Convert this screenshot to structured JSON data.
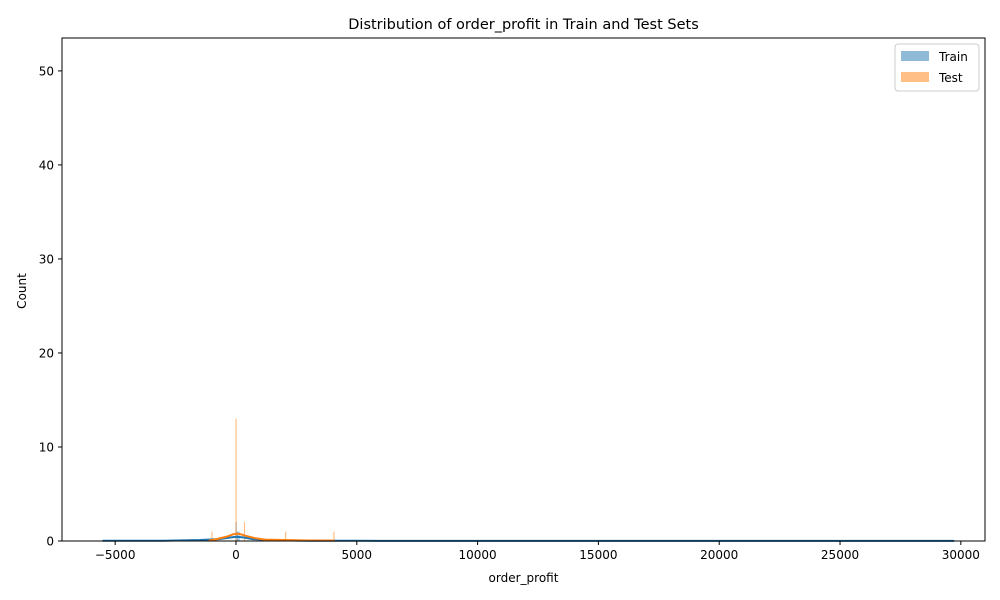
{
  "chart_data": {
    "type": "histogram",
    "title": "Distribution of order_profit in Train and Test Sets",
    "xlabel": "order_profit",
    "ylabel": "Count",
    "xlim": [
      -7200,
      31000
    ],
    "ylim": [
      0,
      53.5
    ],
    "x_ticks": [
      -5000,
      0,
      5000,
      10000,
      15000,
      20000,
      25000,
      30000
    ],
    "x_tick_labels": [
      "−5000",
      "0",
      "5000",
      "10000",
      "15000",
      "20000",
      "25000",
      "30000"
    ],
    "y_ticks": [
      0,
      10,
      20,
      30,
      40,
      50
    ],
    "y_tick_labels": [
      "0",
      "10",
      "20",
      "30",
      "40",
      "50"
    ],
    "grid": false,
    "legend": {
      "position": "upper-right",
      "entries": [
        "Train",
        "Test"
      ]
    },
    "series": [
      {
        "name": "Train",
        "color": "#1f77b4",
        "bars": [
          {
            "x": 0,
            "count": 2
          },
          {
            "x": 60,
            "count": 1
          },
          {
            "x": 120,
            "count": 1
          }
        ],
        "kde": [
          [
            -5500,
            0.02
          ],
          [
            -3000,
            0.03
          ],
          [
            -1500,
            0.1
          ],
          [
            -700,
            0.2
          ],
          [
            -300,
            0.35
          ],
          [
            0,
            0.45
          ],
          [
            300,
            0.38
          ],
          [
            700,
            0.2
          ],
          [
            1500,
            0.08
          ],
          [
            3000,
            0.03
          ],
          [
            5000,
            0.02
          ],
          [
            10000,
            0.01
          ],
          [
            20000,
            0.01
          ],
          [
            29700,
            0.01
          ]
        ]
      },
      {
        "name": "Test",
        "color": "#ff7f0e",
        "bars": [
          {
            "x": -1000,
            "count": 1
          },
          {
            "x": 0,
            "count": 13
          },
          {
            "x": 350,
            "count": 2
          },
          {
            "x": 2050,
            "count": 1
          },
          {
            "x": 4050,
            "count": 1
          }
        ],
        "kde": [
          [
            -1100,
            0.05
          ],
          [
            -800,
            0.2
          ],
          [
            -400,
            0.45
          ],
          [
            -100,
            0.72
          ],
          [
            0,
            0.78
          ],
          [
            150,
            0.75
          ],
          [
            400,
            0.55
          ],
          [
            800,
            0.3
          ],
          [
            1200,
            0.15
          ],
          [
            2000,
            0.1
          ],
          [
            3000,
            0.05
          ],
          [
            4050,
            0.04
          ]
        ]
      }
    ]
  }
}
